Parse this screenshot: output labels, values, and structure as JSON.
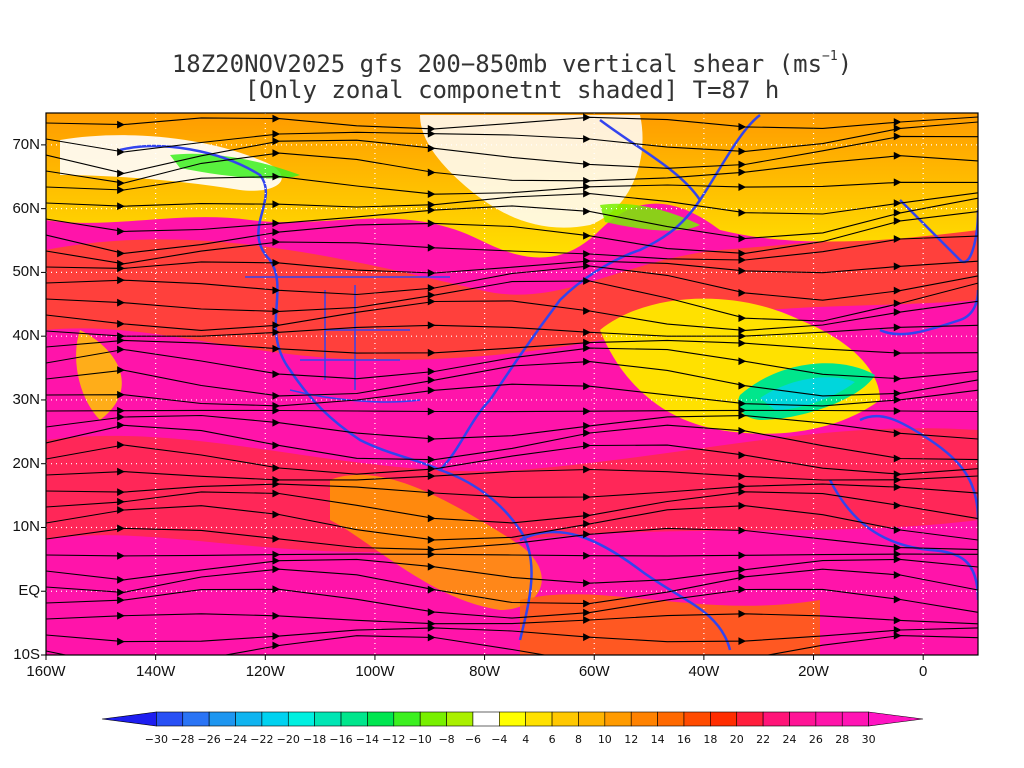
{
  "title": {
    "line1_main": "18Z20NOV2025 gfs 200−850mb vertical shear (ms",
    "line1_sup": "−1",
    "line1_end": ")",
    "line2": "[Only zonal componetnt shaded] T=87 h"
  },
  "map": {
    "lon_range": [
      -160,
      10
    ],
    "lat_range": [
      -10,
      75
    ],
    "lat_ticks": [
      {
        "value": 70,
        "label": "70N"
      },
      {
        "value": 60,
        "label": "60N"
      },
      {
        "value": 50,
        "label": "50N"
      },
      {
        "value": 40,
        "label": "40N"
      },
      {
        "value": 30,
        "label": "30N"
      },
      {
        "value": 20,
        "label": "20N"
      },
      {
        "value": 10,
        "label": "10N"
      },
      {
        "value": 0,
        "label": "EQ"
      },
      {
        "value": -10,
        "label": "10S"
      }
    ],
    "lon_ticks": [
      {
        "value": -160,
        "label": "160W"
      },
      {
        "value": -140,
        "label": "140W"
      },
      {
        "value": -120,
        "label": "120W"
      },
      {
        "value": -100,
        "label": "100W"
      },
      {
        "value": -80,
        "label": "80W"
      },
      {
        "value": -60,
        "label": "60W"
      },
      {
        "value": -40,
        "label": "40W"
      },
      {
        "value": -20,
        "label": "20W"
      },
      {
        "value": 0,
        "label": "0"
      }
    ],
    "grid": "dotted white"
  },
  "colorbar": {
    "labels": [
      "−30",
      "−28",
      "−26",
      "−24",
      "−22",
      "−20",
      "−18",
      "−16",
      "−14",
      "−12",
      "−10",
      "−8",
      "−6",
      "−4",
      "4",
      "6",
      "8",
      "10",
      "12",
      "14",
      "16",
      "18",
      "20",
      "22",
      "24",
      "26",
      "28",
      "30"
    ],
    "colors": [
      "#1e1ef0",
      "#2850f5",
      "#2a74f5",
      "#1e96f0",
      "#10b4f0",
      "#00d2f0",
      "#00f0e0",
      "#00e6b4",
      "#00e68c",
      "#00e650",
      "#3cf020",
      "#78f000",
      "#aaf000",
      "#ffffff",
      "#ffff00",
      "#ffe100",
      "#ffc800",
      "#ffb400",
      "#ff9b00",
      "#ff8200",
      "#ff6900",
      "#ff4b00",
      "#ff2d00",
      "#ff1e3c",
      "#ff1478",
      "#ff1496",
      "#ff14aa",
      "#ff14b4",
      "#ff14c3"
    ]
  }
}
